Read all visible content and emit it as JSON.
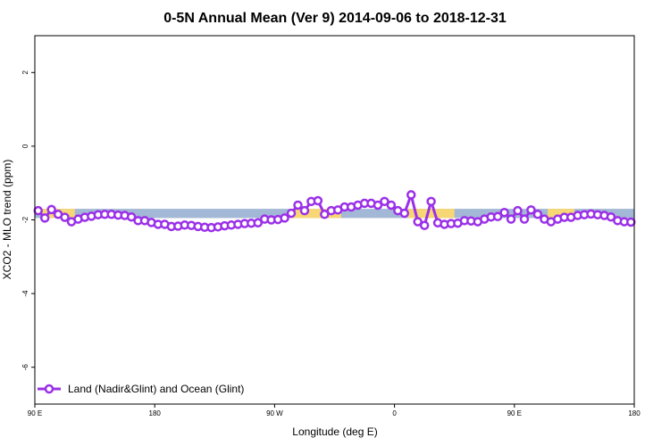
{
  "chart_data": {
    "type": "line",
    "title": "0-5N Annual Mean (Ver 9)   2014-09-06 to 2018-12-31",
    "xlabel": "Longitude (deg E)",
    "ylabel": "XCO2 - MLO trend (ppm)",
    "x_ticks": [
      {
        "value": 90,
        "label": "90 E"
      },
      {
        "value": 180,
        "label": "180"
      },
      {
        "value": 270,
        "label": "90 W"
      },
      {
        "value": 360,
        "label": "0"
      },
      {
        "value": 450,
        "label": "90 E"
      },
      {
        "value": 540,
        "label": "180"
      }
    ],
    "y_ticks": [
      2,
      0,
      -2,
      -4,
      -6
    ],
    "xlim": [
      90,
      540
    ],
    "ylim": [
      -7,
      3
    ],
    "grid": false,
    "legend_position": "bottom-left",
    "colors": {
      "line": "#9b30e8",
      "band_ocean": "#a3b8d6",
      "band_land": "#f7d774"
    },
    "surface_band": {
      "y_top": -1.7,
      "y_bottom": -1.95,
      "land_segments": [
        [
          95,
          120
        ],
        [
          282,
          320
        ],
        [
          370,
          405
        ],
        [
          475,
          495
        ]
      ]
    },
    "series": [
      {
        "name": "Land (Nadir&Glint) and Ocean (Glint)",
        "x": [
          92.5,
          97.5,
          102.5,
          107.5,
          112.5,
          117.5,
          122.5,
          127.5,
          132.5,
          137.5,
          142.5,
          147.5,
          152.5,
          157.5,
          162.5,
          167.5,
          172.5,
          177.5,
          182.5,
          187.5,
          192.5,
          197.5,
          202.5,
          207.5,
          212.5,
          217.5,
          222.5,
          227.5,
          232.5,
          237.5,
          242.5,
          247.5,
          252.5,
          257.5,
          262.5,
          267.5,
          272.5,
          277.5,
          282.5,
          287.5,
          292.5,
          297.5,
          302.5,
          307.5,
          312.5,
          317.5,
          322.5,
          327.5,
          332.5,
          337.5,
          342.5,
          347.5,
          352.5,
          357.5,
          362.5,
          367.5,
          372.5,
          377.5,
          382.5,
          387.5,
          392.5,
          397.5,
          402.5,
          407.5,
          412.5,
          417.5,
          422.5,
          427.5,
          432.5,
          437.5,
          442.5,
          447.5,
          452.5,
          457.5,
          462.5,
          467.5,
          472.5,
          477.5,
          482.5,
          487.5,
          492.5,
          497.5,
          502.5,
          507.5,
          512.5,
          517.5,
          522.5,
          527.5,
          532.5,
          537.5
        ],
        "y": [
          -1.75,
          -1.95,
          -1.72,
          -1.85,
          -1.93,
          -2.05,
          -1.98,
          -1.93,
          -1.9,
          -1.86,
          -1.85,
          -1.85,
          -1.87,
          -1.88,
          -1.92,
          -2.02,
          -2.02,
          -2.07,
          -2.12,
          -2.12,
          -2.18,
          -2.17,
          -2.14,
          -2.15,
          -2.18,
          -2.2,
          -2.21,
          -2.19,
          -2.16,
          -2.14,
          -2.12,
          -2.1,
          -2.09,
          -2.08,
          -1.98,
          -2.0,
          -1.99,
          -1.95,
          -1.82,
          -1.6,
          -1.75,
          -1.5,
          -1.48,
          -1.85,
          -1.75,
          -1.73,
          -1.65,
          -1.65,
          -1.6,
          -1.55,
          -1.55,
          -1.6,
          -1.5,
          -1.6,
          -1.75,
          -1.82,
          -1.32,
          -2.05,
          -2.15,
          -1.5,
          -2.08,
          -2.12,
          -2.1,
          -2.09,
          -2.02,
          -2.03,
          -2.05,
          -1.98,
          -1.92,
          -1.91,
          -1.8,
          -1.98,
          -1.75,
          -1.98,
          -1.73,
          -1.85,
          -1.98,
          -2.05,
          -1.98,
          -1.93,
          -1.93,
          -1.88,
          -1.86,
          -1.84,
          -1.86,
          -1.88,
          -1.92,
          -2.02,
          -2.05,
          -2.06
        ]
      }
    ]
  }
}
